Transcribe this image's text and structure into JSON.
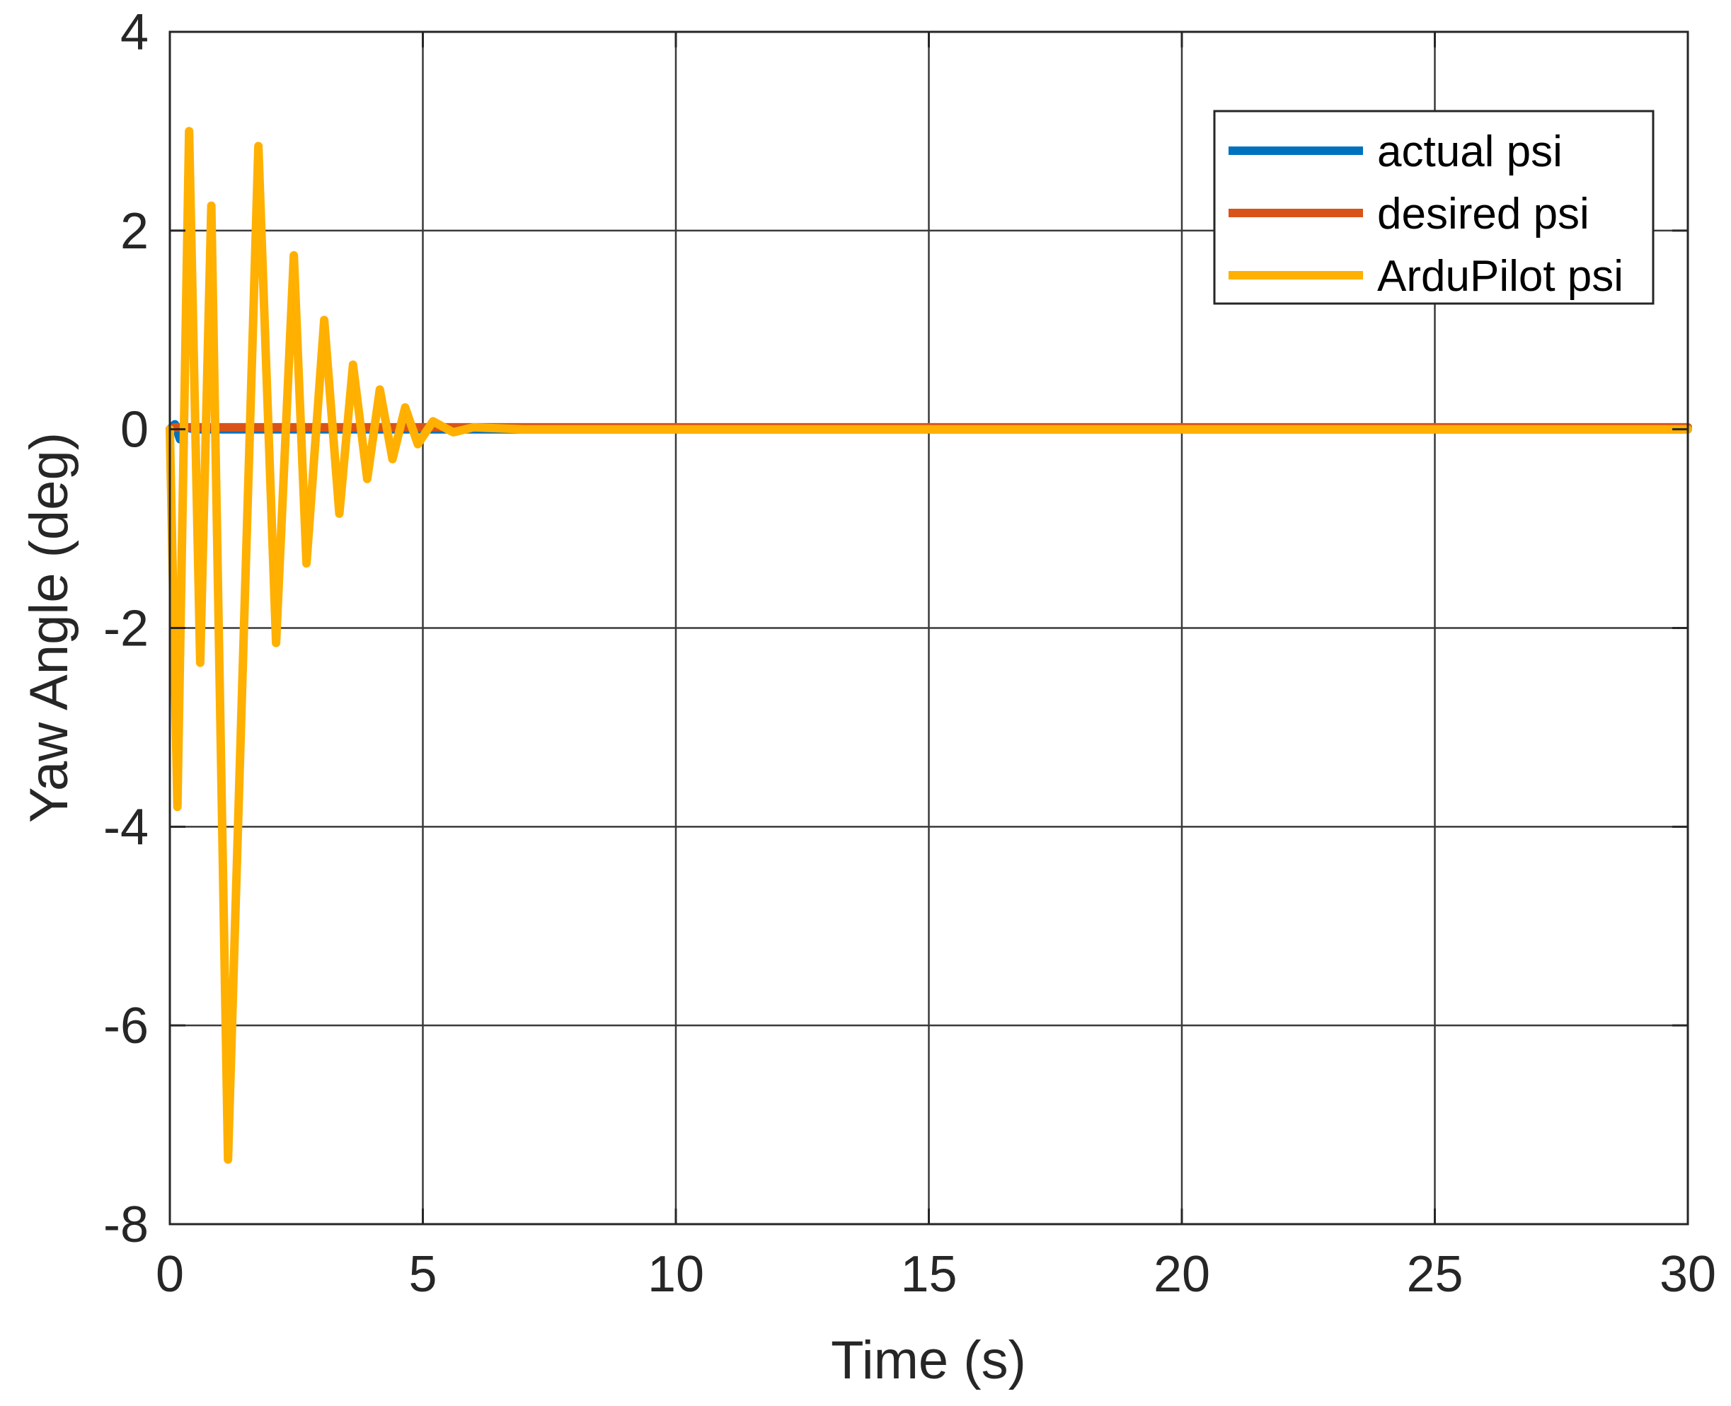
{
  "chart_data": {
    "type": "line",
    "title": "",
    "xlabel": "Time (s)",
    "ylabel": "Yaw Angle (deg)",
    "xlim": [
      0,
      30
    ],
    "ylim": [
      -8,
      4
    ],
    "x_ticks": [
      0,
      5,
      10,
      15,
      20,
      25,
      30
    ],
    "x_tick_labels": [
      "0",
      "5",
      "10",
      "15",
      "20",
      "25",
      "30"
    ],
    "y_ticks": [
      -8,
      -6,
      -4,
      -2,
      0,
      2,
      4
    ],
    "y_tick_labels": [
      "-8",
      "-6",
      "-4",
      "-2",
      "0",
      "2",
      "4"
    ],
    "grid": true,
    "legend_position": "top-right",
    "series": [
      {
        "name": "actual psi",
        "color": "#0072BD",
        "x": [
          0,
          0.1,
          0.2,
          0.3,
          0.5,
          1,
          30
        ],
        "y": [
          0,
          0.05,
          -0.1,
          0.02,
          0,
          0,
          0
        ]
      },
      {
        "name": "desired psi",
        "color": "#D95319",
        "x": [
          0,
          0.1,
          0.3,
          1,
          2,
          30
        ],
        "y": [
          0,
          0.02,
          0.02,
          0.02,
          0.02,
          0.02
        ]
      },
      {
        "name": "ArduPilot psi",
        "color": "#FFB000",
        "x": [
          0,
          0.15,
          0.38,
          0.6,
          0.82,
          1.15,
          1.75,
          2.1,
          2.45,
          2.7,
          3.05,
          3.35,
          3.62,
          3.9,
          4.15,
          4.4,
          4.65,
          4.9,
          5.2,
          5.6,
          6.0,
          7.0,
          30
        ],
        "y": [
          0,
          -3.8,
          3.0,
          -2.35,
          2.25,
          -7.35,
          2.85,
          -2.15,
          1.75,
          -1.35,
          1.1,
          -0.85,
          0.65,
          -0.5,
          0.4,
          -0.3,
          0.22,
          -0.15,
          0.08,
          -0.03,
          0.02,
          0,
          0
        ]
      }
    ]
  }
}
